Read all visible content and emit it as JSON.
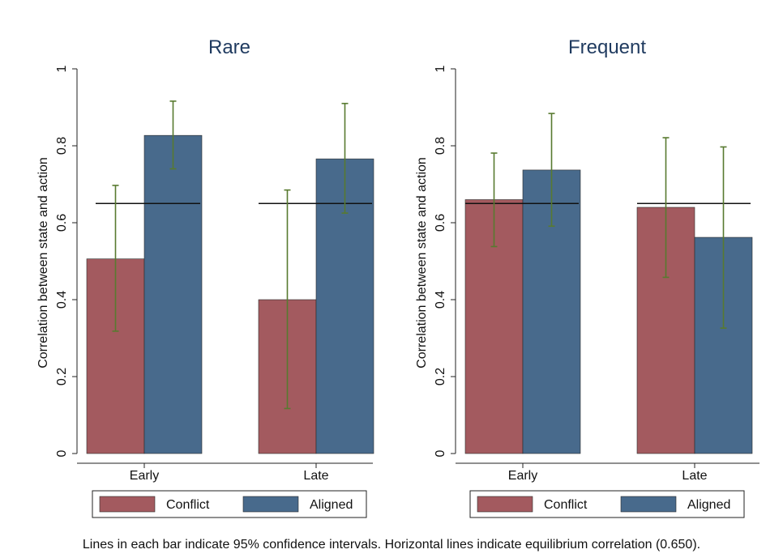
{
  "chart_data": [
    {
      "type": "bar",
      "title": "Rare",
      "ylabel": "Correlation between state and action",
      "ylim": [
        0,
        1
      ],
      "yticks": [
        "0",
        "0.2",
        "0.4",
        "0.6",
        "0.8",
        "1"
      ],
      "categories": [
        "Early",
        "Late"
      ],
      "series": [
        {
          "name": "Conflict",
          "color": "#a35a5f",
          "values": [
            0.506,
            0.4
          ],
          "ci_low": [
            0.318,
            0.117
          ],
          "ci_high": [
            0.697,
            0.685
          ]
        },
        {
          "name": "Aligned",
          "color": "#486a8c",
          "values": [
            0.827,
            0.766
          ],
          "ci_low": [
            0.74,
            0.625
          ],
          "ci_high": [
            0.916,
            0.91
          ]
        }
      ],
      "reference_line": 0.65
    },
    {
      "type": "bar",
      "title": "Frequent",
      "ylabel": "Correlation between state and action",
      "ylim": [
        0,
        1
      ],
      "yticks": [
        "0",
        "0.2",
        "0.4",
        "0.6",
        "0.8",
        "1"
      ],
      "categories": [
        "Early",
        "Late"
      ],
      "series": [
        {
          "name": "Conflict",
          "color": "#a35a5f",
          "values": [
            0.66,
            0.64
          ],
          "ci_low": [
            0.538,
            0.458
          ],
          "ci_high": [
            0.781,
            0.821
          ]
        },
        {
          "name": "Aligned",
          "color": "#486a8c",
          "values": [
            0.737,
            0.562
          ],
          "ci_low": [
            0.591,
            0.326
          ],
          "ci_high": [
            0.884,
            0.797
          ]
        }
      ],
      "reference_line": 0.65
    }
  ],
  "colors": {
    "ci_line": "#587a30",
    "reference_line": "#111111",
    "axis": "#222222"
  },
  "note": "Lines in each bar indicate 95% confidence intervals. Horizontal lines indicate equilibrium correlation (0.650)."
}
